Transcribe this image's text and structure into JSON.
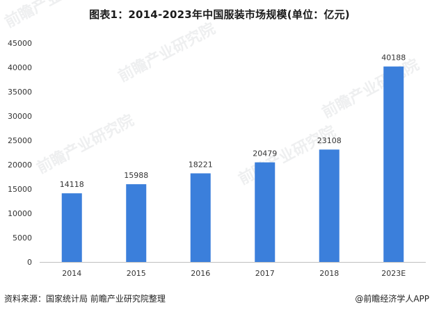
{
  "title": "图表1：2014-2023年中国服装市场规模(单位：亿元)",
  "footer": {
    "source": "资料来源：国家统计局 前瞻产业研究院整理",
    "brand": "@前瞻经济学人APP"
  },
  "watermark": "前瞻产业研究院",
  "colors": {
    "bar": "#3b7fdb",
    "axis": "#bfbfbf",
    "text": "#333333"
  },
  "chart_data": {
    "type": "bar",
    "title": "图表1：2014-2023年中国服装市场规模(单位：亿元)",
    "categories": [
      "2014",
      "2015",
      "2016",
      "2017",
      "2018",
      "2023E"
    ],
    "values": [
      14118,
      15988,
      18221,
      20479,
      23108,
      40188
    ],
    "data_labels": [
      "14118",
      "15988",
      "18221",
      "20479",
      "23108",
      "40188"
    ],
    "yticks": [
      0,
      5000,
      10000,
      15000,
      20000,
      25000,
      30000,
      35000,
      40000,
      45000
    ],
    "ylim": [
      0,
      45000
    ],
    "xlabel": "",
    "ylabel": "",
    "grid": false,
    "legend": "none"
  }
}
